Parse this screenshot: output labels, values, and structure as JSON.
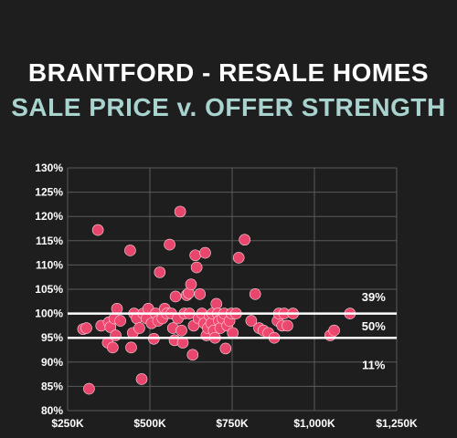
{
  "title": "BRANTFORD - RESALE HOMES",
  "subtitle": "SALE PRICE v. OFFER STRENGTH",
  "colors": {
    "background": "#1f1e1e",
    "title": "#ffffff",
    "subtitle": "#a9d3cf",
    "point": "#f0476f",
    "grid": "#5a5a5a",
    "reference_line": "#ffffff"
  },
  "chart_data": {
    "type": "scatter",
    "title": "BRANTFORD - RESALE HOMES",
    "subtitle": "SALE PRICE v. OFFER STRENGTH",
    "xlabel": "",
    "ylabel": "",
    "xlim": [
      250,
      1250
    ],
    "ylim": [
      80,
      130
    ],
    "x_unit": "thousand dollars",
    "y_unit": "percent",
    "x_ticks": [
      250,
      500,
      750,
      1000,
      1250
    ],
    "x_tick_labels": [
      "$250K",
      "$500K",
      "$750K",
      "$1,000K",
      "$1,250K"
    ],
    "y_ticks": [
      80,
      85,
      90,
      95,
      100,
      105,
      110,
      115,
      120,
      125,
      130
    ],
    "y_tick_labels": [
      "80%",
      "85%",
      "90%",
      "95%",
      "100%",
      "105%",
      "110%",
      "115%",
      "120%",
      "125%",
      "130%"
    ],
    "grid": true,
    "reference_lines": [
      100,
      95
    ],
    "annotations": [
      {
        "text": "39%",
        "x": 1180,
        "y": 103.5
      },
      {
        "text": "50%",
        "x": 1180,
        "y": 97.5
      },
      {
        "text": "11%",
        "x": 1180,
        "y": 89.5
      }
    ],
    "points": [
      [
        297,
        96.8
      ],
      [
        307,
        97.0
      ],
      [
        315,
        84.5
      ],
      [
        342,
        117.2
      ],
      [
        352,
        97.5
      ],
      [
        372,
        94.0
      ],
      [
        375,
        98.2
      ],
      [
        380,
        97.2
      ],
      [
        387,
        93.0
      ],
      [
        392,
        99.0
      ],
      [
        396,
        95.5
      ],
      [
        400,
        101.0
      ],
      [
        410,
        98.5
      ],
      [
        440,
        113.0
      ],
      [
        443,
        93.0
      ],
      [
        448,
        96.0
      ],
      [
        452,
        100.0
      ],
      [
        460,
        99.0
      ],
      [
        468,
        97.0
      ],
      [
        475,
        86.5
      ],
      [
        480,
        100.0
      ],
      [
        490,
        99.0
      ],
      [
        495,
        101.0
      ],
      [
        505,
        98.0
      ],
      [
        512,
        94.8
      ],
      [
        518,
        100.0
      ],
      [
        525,
        98.5
      ],
      [
        530,
        108.5
      ],
      [
        538,
        99.0
      ],
      [
        545,
        101.0
      ],
      [
        552,
        100.0
      ],
      [
        560,
        114.2
      ],
      [
        565,
        100.0
      ],
      [
        570,
        97.0
      ],
      [
        575,
        94.5
      ],
      [
        578,
        103.5
      ],
      [
        585,
        99.0
      ],
      [
        592,
        121.0
      ],
      [
        596,
        96.5
      ],
      [
        600,
        94.0
      ],
      [
        605,
        100.0
      ],
      [
        612,
        103.8
      ],
      [
        618,
        104.2
      ],
      [
        620,
        100.0
      ],
      [
        625,
        106.0
      ],
      [
        630,
        91.5
      ],
      [
        633,
        97.5
      ],
      [
        638,
        112.0
      ],
      [
        642,
        109.5
      ],
      [
        648,
        99.0
      ],
      [
        652,
        104.0
      ],
      [
        658,
        100.0
      ],
      [
        665,
        98.0
      ],
      [
        668,
        112.5
      ],
      [
        672,
        95.5
      ],
      [
        676,
        97.0
      ],
      [
        682,
        99.5
      ],
      [
        686,
        98.0
      ],
      [
        690,
        100.0
      ],
      [
        694,
        96.5
      ],
      [
        698,
        95.0
      ],
      [
        702,
        102.0
      ],
      [
        706,
        100.0
      ],
      [
        710,
        98.5
      ],
      [
        714,
        97.0
      ],
      [
        720,
        99.0
      ],
      [
        726,
        100.0
      ],
      [
        730,
        92.8
      ],
      [
        735,
        97.5
      ],
      [
        742,
        98.5
      ],
      [
        748,
        100.0
      ],
      [
        752,
        96.0
      ],
      [
        762,
        100.0
      ],
      [
        770,
        111.5
      ],
      [
        788,
        115.2
      ],
      [
        808,
        98.5
      ],
      [
        820,
        104.0
      ],
      [
        832,
        97.0
      ],
      [
        845,
        96.5
      ],
      [
        860,
        96.0
      ],
      [
        878,
        95.0
      ],
      [
        888,
        98.5
      ],
      [
        892,
        100.0
      ],
      [
        902,
        97.5
      ],
      [
        908,
        100.0
      ],
      [
        918,
        97.5
      ],
      [
        935,
        100.0
      ],
      [
        1048,
        95.5
      ],
      [
        1060,
        96.5
      ],
      [
        1108,
        100.0
      ]
    ]
  }
}
